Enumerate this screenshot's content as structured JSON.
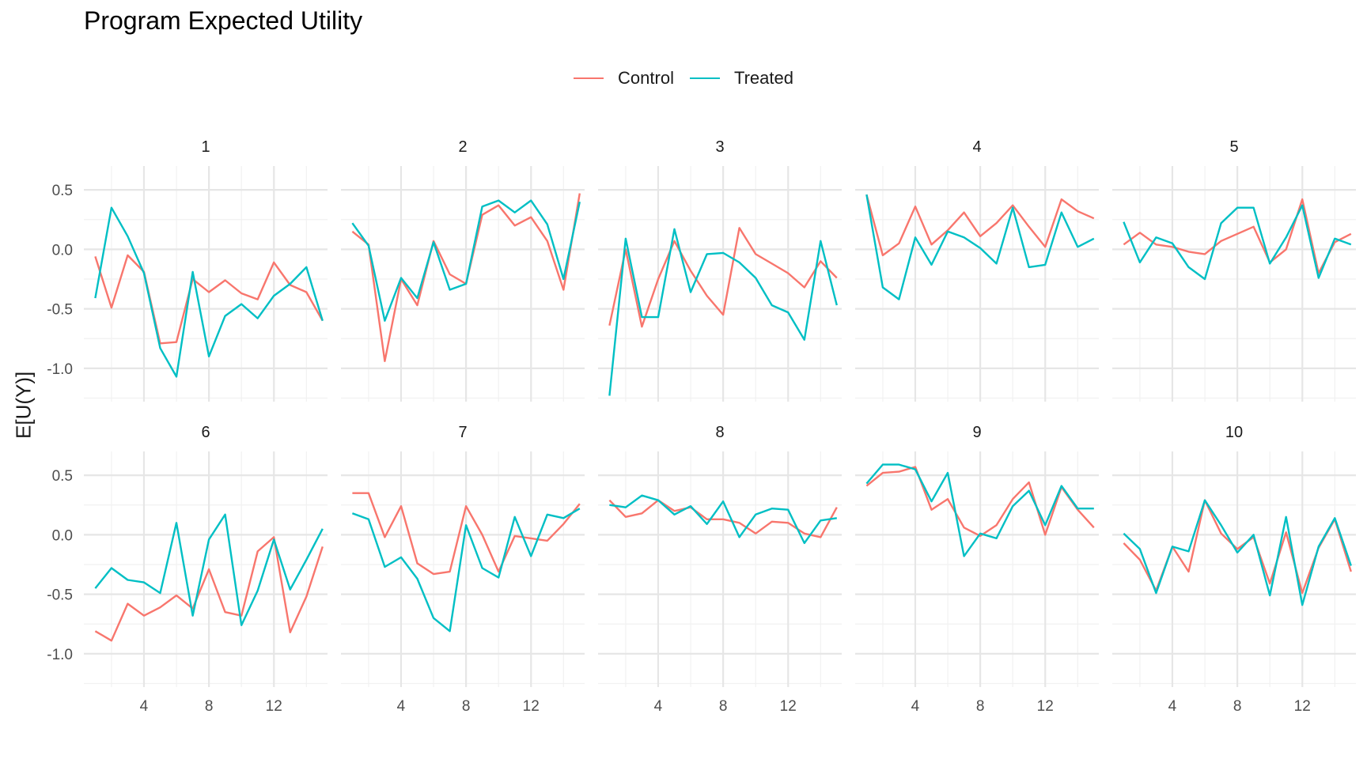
{
  "chart_data": {
    "type": "line",
    "title": "Program Expected Utility",
    "xlabel": "",
    "ylabel": "E[U(Y)]",
    "xlim": [
      0.3,
      15.3
    ],
    "ylim": [
      -1.28,
      0.7
    ],
    "x_ticks": [
      4,
      8,
      12
    ],
    "y_ticks": [
      0.5,
      0.0,
      -0.5,
      -1.0
    ],
    "y_tick_labels": [
      "0.5",
      "0.0",
      "-0.5",
      "-1.0"
    ],
    "legend_position": "top",
    "grid": true,
    "x": [
      1,
      2,
      3,
      4,
      5,
      6,
      7,
      8,
      9,
      10,
      11,
      12,
      13,
      14,
      15
    ],
    "series_meta": [
      {
        "name": "Control",
        "color": "#F8766D"
      },
      {
        "name": "Treated",
        "color": "#00BFC4"
      }
    ],
    "panels": [
      {
        "label": "1",
        "Control": [
          -0.06,
          -0.49,
          -0.05,
          -0.19,
          -0.79,
          -0.78,
          -0.25,
          -0.36,
          -0.26,
          -0.37,
          -0.42,
          -0.11,
          -0.3,
          -0.36,
          -0.6
        ],
        "Treated": [
          -0.41,
          0.35,
          0.11,
          -0.2,
          -0.83,
          -1.07,
          -0.19,
          -0.9,
          -0.56,
          -0.46,
          -0.58,
          -0.39,
          -0.29,
          -0.15,
          -0.6
        ]
      },
      {
        "label": "2",
        "Control": [
          0.15,
          0.04,
          -0.94,
          -0.25,
          -0.47,
          0.07,
          -0.21,
          -0.29,
          0.29,
          0.37,
          0.2,
          0.27,
          0.07,
          -0.34,
          0.47
        ],
        "Treated": [
          0.22,
          0.03,
          -0.6,
          -0.24,
          -0.41,
          0.06,
          -0.34,
          -0.29,
          0.36,
          0.41,
          0.31,
          0.41,
          0.21,
          -0.25,
          0.4
        ]
      },
      {
        "label": "3",
        "Control": [
          -0.64,
          0.0,
          -0.65,
          -0.25,
          0.07,
          -0.18,
          -0.39,
          -0.55,
          0.18,
          -0.04,
          -0.12,
          -0.2,
          -0.32,
          -0.1,
          -0.24
        ],
        "Treated": [
          -1.23,
          0.09,
          -0.57,
          -0.57,
          0.17,
          -0.36,
          -0.04,
          -0.03,
          -0.11,
          -0.24,
          -0.47,
          -0.53,
          -0.76,
          0.07,
          -0.47
        ]
      },
      {
        "label": "4",
        "Control": [
          0.46,
          -0.05,
          0.05,
          0.36,
          0.04,
          0.16,
          0.31,
          0.11,
          0.22,
          0.37,
          0.19,
          0.02,
          0.42,
          0.32,
          0.26
        ],
        "Treated": [
          0.46,
          -0.32,
          -0.42,
          0.1,
          -0.13,
          0.15,
          0.1,
          0.01,
          -0.12,
          0.35,
          -0.15,
          -0.13,
          0.31,
          0.02,
          0.09
        ]
      },
      {
        "label": "5",
        "Control": [
          0.04,
          0.14,
          0.04,
          0.02,
          -0.02,
          -0.04,
          0.07,
          0.13,
          0.19,
          -0.11,
          0.0,
          0.42,
          -0.2,
          0.06,
          0.13
        ],
        "Treated": [
          0.23,
          -0.11,
          0.1,
          0.05,
          -0.15,
          -0.25,
          0.22,
          0.35,
          0.35,
          -0.12,
          0.1,
          0.37,
          -0.24,
          0.09,
          0.04
        ]
      },
      {
        "label": "6",
        "Control": [
          -0.81,
          -0.89,
          -0.58,
          -0.68,
          -0.61,
          -0.51,
          -0.62,
          -0.29,
          -0.65,
          -0.68,
          -0.14,
          -0.02,
          -0.82,
          -0.52,
          -0.1
        ],
        "Treated": [
          -0.45,
          -0.28,
          -0.38,
          -0.4,
          -0.49,
          0.1,
          -0.68,
          -0.04,
          0.17,
          -0.76,
          -0.47,
          -0.04,
          -0.46,
          -0.21,
          0.05
        ]
      },
      {
        "label": "7",
        "Control": [
          0.35,
          0.35,
          -0.02,
          0.24,
          -0.24,
          -0.33,
          -0.31,
          0.24,
          0.0,
          -0.31,
          -0.01,
          -0.03,
          -0.05,
          0.09,
          0.26
        ],
        "Treated": [
          0.18,
          0.13,
          -0.27,
          -0.19,
          -0.37,
          -0.7,
          -0.81,
          0.08,
          -0.28,
          -0.36,
          0.15,
          -0.18,
          0.17,
          0.14,
          0.22
        ]
      },
      {
        "label": "8",
        "Control": [
          0.29,
          0.15,
          0.18,
          0.29,
          0.2,
          0.23,
          0.13,
          0.13,
          0.1,
          0.01,
          0.11,
          0.1,
          0.01,
          -0.02,
          0.23
        ],
        "Treated": [
          0.25,
          0.23,
          0.33,
          0.29,
          0.17,
          0.24,
          0.09,
          0.28,
          -0.02,
          0.17,
          0.22,
          0.21,
          -0.07,
          0.12,
          0.14
        ]
      },
      {
        "label": "9",
        "Control": [
          0.41,
          0.52,
          0.53,
          0.57,
          0.21,
          0.3,
          0.06,
          -0.01,
          0.08,
          0.3,
          0.44,
          0.0,
          0.4,
          0.21,
          0.06
        ],
        "Treated": [
          0.43,
          0.59,
          0.59,
          0.55,
          0.28,
          0.52,
          -0.18,
          0.01,
          -0.03,
          0.24,
          0.37,
          0.08,
          0.41,
          0.22,
          0.22
        ]
      },
      {
        "label": "10",
        "Control": [
          -0.07,
          -0.21,
          -0.47,
          -0.1,
          -0.31,
          0.29,
          0.01,
          -0.12,
          -0.02,
          -0.41,
          0.02,
          -0.49,
          -0.11,
          0.13,
          -0.31
        ],
        "Treated": [
          0.01,
          -0.12,
          -0.49,
          -0.1,
          -0.14,
          0.29,
          0.08,
          -0.15,
          0.0,
          -0.51,
          0.15,
          -0.59,
          -0.1,
          0.14,
          -0.26
        ]
      }
    ]
  }
}
